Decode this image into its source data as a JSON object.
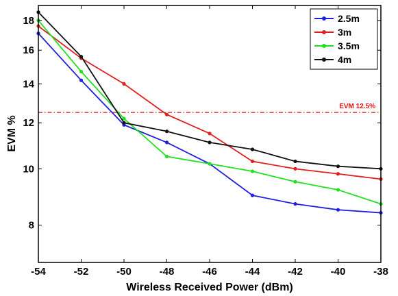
{
  "chart_data": {
    "type": "line",
    "xlabel": "Wireless Received Power (dBm)",
    "ylabel": "EVM %",
    "x": [
      -54,
      -52,
      -50,
      -48,
      -46,
      -44,
      -42,
      -40,
      -38
    ],
    "xlim": [
      -54,
      -38
    ],
    "ylim": [
      6.9,
      19.1
    ],
    "y_scale": "log",
    "xticks": [
      "-54",
      "-52",
      "-50",
      "-48",
      "-46",
      "-44",
      "-42",
      "-40",
      "-38"
    ],
    "yticks": [
      {
        "value": 8,
        "label": "8"
      },
      {
        "value": 10,
        "label": "10"
      },
      {
        "value": 12,
        "label": "12"
      },
      {
        "value": 14,
        "label": "14"
      },
      {
        "value": 16,
        "label": "16"
      },
      {
        "value": 18,
        "label": "18"
      }
    ],
    "grid": false,
    "legend_position": "top-right",
    "series": [
      {
        "name": "2.5m",
        "color": "#1f1fe0",
        "values": [
          17.1,
          14.2,
          11.9,
          11.1,
          10.2,
          9.0,
          8.7,
          8.5,
          8.4
        ]
      },
      {
        "name": "3m",
        "color": "#e01f1f",
        "values": [
          17.6,
          15.5,
          14.0,
          12.4,
          11.5,
          10.3,
          10.0,
          9.8,
          9.6
        ]
      },
      {
        "name": "3.5m",
        "color": "#20e020",
        "values": [
          18.0,
          14.7,
          12.2,
          10.5,
          10.2,
          9.9,
          9.5,
          9.2,
          8.7
        ]
      },
      {
        "name": "4m",
        "color": "#111111",
        "values": [
          18.6,
          15.6,
          12.0,
          11.6,
          11.1,
          10.8,
          10.3,
          10.1,
          10.0
        ]
      }
    ],
    "reference_line": {
      "y": 12.5,
      "label": "EVM 12.5%",
      "color": "#e01010",
      "style": "dash-dot"
    }
  }
}
